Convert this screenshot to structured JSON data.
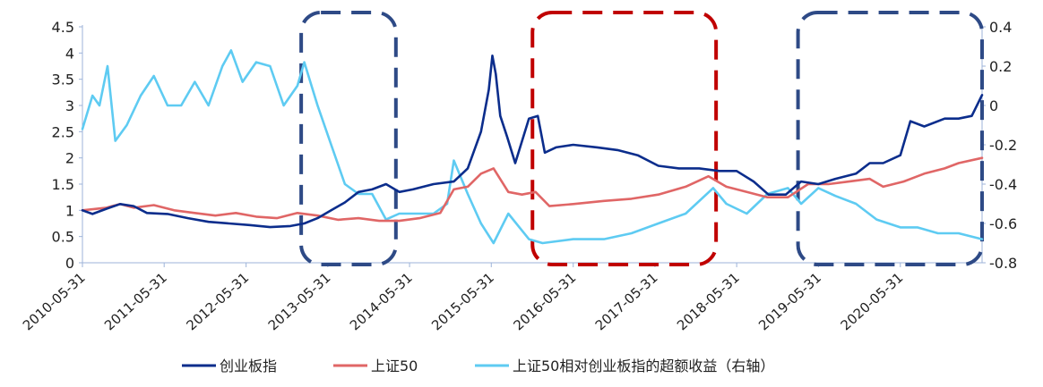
{
  "chart_data": {
    "type": "line",
    "x_ticks": [
      "2010-05-31",
      "2011-05-31",
      "2012-05-31",
      "2013-05-31",
      "2014-05-31",
      "2015-05-31",
      "2016-05-31",
      "2017-05-31",
      "2018-05-31",
      "2019-05-31",
      "2020-05-31"
    ],
    "x_range": [
      "2010-05-31",
      "2021-05-31"
    ],
    "y_left": {
      "ticks": [
        "0",
        "0.5",
        "1",
        "1.5",
        "2",
        "2.5",
        "3",
        "3.5",
        "4",
        "4.5"
      ],
      "range": [
        0,
        4.5
      ]
    },
    "y_right": {
      "ticks": [
        "0.4",
        "0.2",
        "0",
        "-0.2",
        "-0.4",
        "-0.6",
        "-0.8"
      ],
      "range": [
        -0.8,
        0.4
      ]
    },
    "legend_placement": "bottom",
    "colors": {
      "chinext": "#0b2d8c",
      "sse50": "#e06666",
      "excess": "#5ecbf2",
      "box_blue": "#2e4a86",
      "box_red": "#c00000",
      "axis": "#9db3d9"
    },
    "highlight_boxes": [
      {
        "style": "blue-dashed",
        "from": "2013-02-01",
        "to": "2014-03-31",
        "y_top": 4.6,
        "y_bottom": 0
      },
      {
        "style": "red-dashed",
        "from": "2015-12-01",
        "to": "2018-02-28",
        "y_top": 4.6,
        "y_bottom": 0
      },
      {
        "style": "blue-dashed",
        "from": "2019-03-01",
        "to": "2021-05-31",
        "y_top": 4.6,
        "y_bottom": 0
      }
    ],
    "series": [
      {
        "name": "创业板指",
        "axis": "left",
        "points": [
          [
            "2010-05-31",
            1.0
          ],
          [
            "2010-07-15",
            0.93
          ],
          [
            "2010-09-15",
            1.03
          ],
          [
            "2010-11-15",
            1.12
          ],
          [
            "2011-01-15",
            1.08
          ],
          [
            "2011-03-15",
            0.95
          ],
          [
            "2011-06-15",
            0.93
          ],
          [
            "2011-09-15",
            0.85
          ],
          [
            "2011-12-15",
            0.78
          ],
          [
            "2012-03-15",
            0.75
          ],
          [
            "2012-06-15",
            0.72
          ],
          [
            "2012-09-15",
            0.68
          ],
          [
            "2012-12-15",
            0.7
          ],
          [
            "2013-02-15",
            0.75
          ],
          [
            "2013-04-15",
            0.85
          ],
          [
            "2013-06-15",
            1.0
          ],
          [
            "2013-08-15",
            1.15
          ],
          [
            "2013-10-15",
            1.35
          ],
          [
            "2013-12-15",
            1.4
          ],
          [
            "2014-02-15",
            1.5
          ],
          [
            "2014-04-15",
            1.35
          ],
          [
            "2014-06-15",
            1.4
          ],
          [
            "2014-09-15",
            1.5
          ],
          [
            "2014-12-15",
            1.55
          ],
          [
            "2015-02-15",
            1.8
          ],
          [
            "2015-04-15",
            2.5
          ],
          [
            "2015-05-20",
            3.3
          ],
          [
            "2015-06-05",
            3.95
          ],
          [
            "2015-06-20",
            3.6
          ],
          [
            "2015-07-10",
            2.8
          ],
          [
            "2015-08-10",
            2.4
          ],
          [
            "2015-09-15",
            1.9
          ],
          [
            "2015-11-15",
            2.75
          ],
          [
            "2015-12-25",
            2.8
          ],
          [
            "2016-01-25",
            2.1
          ],
          [
            "2016-03-15",
            2.2
          ],
          [
            "2016-05-31",
            2.25
          ],
          [
            "2016-09-15",
            2.2
          ],
          [
            "2016-12-15",
            2.15
          ],
          [
            "2017-03-15",
            2.05
          ],
          [
            "2017-06-15",
            1.85
          ],
          [
            "2017-09-15",
            1.8
          ],
          [
            "2017-12-15",
            1.8
          ],
          [
            "2018-03-15",
            1.75
          ],
          [
            "2018-05-31",
            1.75
          ],
          [
            "2018-08-15",
            1.55
          ],
          [
            "2018-10-20",
            1.3
          ],
          [
            "2019-01-05",
            1.3
          ],
          [
            "2019-03-15",
            1.55
          ],
          [
            "2019-05-31",
            1.5
          ],
          [
            "2019-08-15",
            1.6
          ],
          [
            "2019-11-15",
            1.7
          ],
          [
            "2020-01-15",
            1.9
          ],
          [
            "2020-03-15",
            1.9
          ],
          [
            "2020-05-31",
            2.05
          ],
          [
            "2020-07-15",
            2.7
          ],
          [
            "2020-09-15",
            2.6
          ],
          [
            "2020-12-15",
            2.75
          ],
          [
            "2021-02-15",
            2.75
          ],
          [
            "2021-04-15",
            2.8
          ],
          [
            "2021-05-31",
            3.2
          ]
        ]
      },
      {
        "name": "上证50",
        "axis": "left",
        "points": [
          [
            "2010-05-31",
            1.0
          ],
          [
            "2010-09-15",
            1.05
          ],
          [
            "2010-11-15",
            1.12
          ],
          [
            "2011-01-15",
            1.05
          ],
          [
            "2011-04-15",
            1.1
          ],
          [
            "2011-07-15",
            1.0
          ],
          [
            "2011-10-15",
            0.95
          ],
          [
            "2012-01-15",
            0.9
          ],
          [
            "2012-04-15",
            0.95
          ],
          [
            "2012-07-15",
            0.88
          ],
          [
            "2012-10-15",
            0.85
          ],
          [
            "2013-01-15",
            0.95
          ],
          [
            "2013-04-15",
            0.9
          ],
          [
            "2013-07-15",
            0.82
          ],
          [
            "2013-10-15",
            0.85
          ],
          [
            "2014-01-15",
            0.8
          ],
          [
            "2014-04-15",
            0.8
          ],
          [
            "2014-07-15",
            0.85
          ],
          [
            "2014-10-15",
            0.95
          ],
          [
            "2014-12-15",
            1.4
          ],
          [
            "2015-02-15",
            1.45
          ],
          [
            "2015-04-15",
            1.7
          ],
          [
            "2015-06-10",
            1.8
          ],
          [
            "2015-08-15",
            1.35
          ],
          [
            "2015-10-15",
            1.3
          ],
          [
            "2015-12-15",
            1.35
          ],
          [
            "2016-02-15",
            1.08
          ],
          [
            "2016-05-31",
            1.12
          ],
          [
            "2016-10-15",
            1.18
          ],
          [
            "2017-02-15",
            1.22
          ],
          [
            "2017-06-15",
            1.3
          ],
          [
            "2017-10-15",
            1.45
          ],
          [
            "2018-01-25",
            1.65
          ],
          [
            "2018-04-15",
            1.45
          ],
          [
            "2018-07-15",
            1.35
          ],
          [
            "2018-10-15",
            1.25
          ],
          [
            "2019-01-15",
            1.25
          ],
          [
            "2019-04-15",
            1.5
          ],
          [
            "2019-07-15",
            1.5
          ],
          [
            "2019-10-15",
            1.55
          ],
          [
            "2020-01-15",
            1.6
          ],
          [
            "2020-03-15",
            1.45
          ],
          [
            "2020-06-15",
            1.55
          ],
          [
            "2020-09-15",
            1.7
          ],
          [
            "2020-12-15",
            1.8
          ],
          [
            "2021-02-15",
            1.9
          ],
          [
            "2021-05-31",
            2.0
          ]
        ]
      },
      {
        "name": "上证50相对创业板指的超额收益（右轴）",
        "axis": "right",
        "points": [
          [
            "2010-05-31",
            -0.12
          ],
          [
            "2010-07-15",
            0.05
          ],
          [
            "2010-08-15",
            0.0
          ],
          [
            "2010-09-20",
            0.2
          ],
          [
            "2010-10-25",
            -0.18
          ],
          [
            "2010-12-15",
            -0.1
          ],
          [
            "2011-02-15",
            0.05
          ],
          [
            "2011-04-15",
            0.15
          ],
          [
            "2011-06-15",
            0.0
          ],
          [
            "2011-08-15",
            0.0
          ],
          [
            "2011-10-15",
            0.12
          ],
          [
            "2011-12-15",
            0.0
          ],
          [
            "2012-02-15",
            0.2
          ],
          [
            "2012-03-25",
            0.28
          ],
          [
            "2012-05-15",
            0.12
          ],
          [
            "2012-07-15",
            0.22
          ],
          [
            "2012-09-15",
            0.2
          ],
          [
            "2012-11-15",
            0.0
          ],
          [
            "2013-01-15",
            0.1
          ],
          [
            "2013-02-15",
            0.22
          ],
          [
            "2013-04-15",
            0.0
          ],
          [
            "2013-06-15",
            -0.2
          ],
          [
            "2013-08-15",
            -0.4
          ],
          [
            "2013-10-15",
            -0.45
          ],
          [
            "2013-12-15",
            -0.45
          ],
          [
            "2014-02-15",
            -0.58
          ],
          [
            "2014-04-15",
            -0.55
          ],
          [
            "2014-06-15",
            -0.55
          ],
          [
            "2014-09-15",
            -0.55
          ],
          [
            "2014-11-15",
            -0.5
          ],
          [
            "2014-12-15",
            -0.28
          ],
          [
            "2015-02-15",
            -0.45
          ],
          [
            "2015-04-15",
            -0.6
          ],
          [
            "2015-06-10",
            -0.7
          ],
          [
            "2015-08-15",
            -0.55
          ],
          [
            "2015-11-15",
            -0.68
          ],
          [
            "2016-01-15",
            -0.7
          ],
          [
            "2016-05-31",
            -0.68
          ],
          [
            "2016-10-15",
            -0.68
          ],
          [
            "2017-02-15",
            -0.65
          ],
          [
            "2017-06-15",
            -0.6
          ],
          [
            "2017-10-15",
            -0.55
          ],
          [
            "2018-02-15",
            -0.42
          ],
          [
            "2018-04-15",
            -0.5
          ],
          [
            "2018-07-15",
            -0.55
          ],
          [
            "2018-10-15",
            -0.45
          ],
          [
            "2019-01-15",
            -0.42
          ],
          [
            "2019-03-15",
            -0.5
          ],
          [
            "2019-05-31",
            -0.42
          ],
          [
            "2019-08-15",
            -0.46
          ],
          [
            "2019-11-15",
            -0.5
          ],
          [
            "2020-02-15",
            -0.58
          ],
          [
            "2020-05-31",
            -0.62
          ],
          [
            "2020-08-15",
            -0.62
          ],
          [
            "2020-11-15",
            -0.65
          ],
          [
            "2021-02-15",
            -0.65
          ],
          [
            "2021-05-31",
            -0.68
          ]
        ]
      }
    ]
  }
}
